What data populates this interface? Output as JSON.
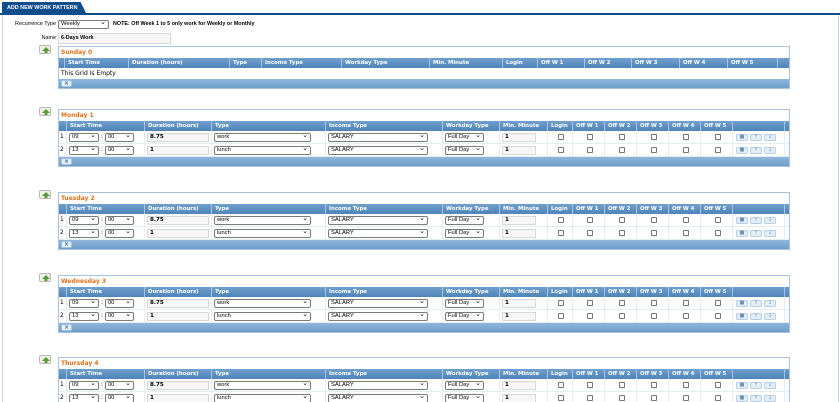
{
  "tab": {
    "label": "ADD NEW WORK PATTERN"
  },
  "form": {
    "recurrence_label": "Recurrence Type",
    "recurrence_value": "Weekly",
    "note": "NOTE: Off Week 1 to 5 only work for Weekly or Monthly",
    "name_label": "Name",
    "name_value": "6-Days Work"
  },
  "empty_grid": {
    "caption": "Sunday 0",
    "columns": [
      "Start Time",
      "Duration (hours)",
      "Type",
      "Income Type",
      "Workday Type",
      "Min. Minute",
      "Login",
      "Off W 1",
      "Off W 2",
      "Off W 3",
      "Off W 4",
      "Off W 5"
    ],
    "empty_text": "This Grid Is Empty"
  },
  "day_columns": [
    "Start Time",
    "Duration (hours)",
    "Type",
    "Income Type",
    "Workday Type",
    "Min. Minute",
    "Login",
    "Off W 1",
    "Off W 2",
    "Off W 3",
    "Off W 4",
    "Off W 5"
  ],
  "days": [
    {
      "caption": "Monday 1",
      "rows": [
        {
          "num": "1",
          "hour": "09",
          "minute": "00",
          "duration": "8.75",
          "type": "work",
          "income": "SALARY",
          "workday": "Full Day",
          "min_minute": "1"
        },
        {
          "num": "2",
          "hour": "13",
          "minute": "00",
          "duration": "1",
          "type": "lunch",
          "income": "SALARY",
          "workday": "Full Day",
          "min_minute": "1"
        }
      ]
    },
    {
      "caption": "Tuesday 2",
      "rows": [
        {
          "num": "1",
          "hour": "09",
          "minute": "00",
          "duration": "8.75",
          "type": "work",
          "income": "SALARY",
          "workday": "Full Day",
          "min_minute": "1"
        },
        {
          "num": "2",
          "hour": "13",
          "minute": "00",
          "duration": "1",
          "type": "lunch",
          "income": "SALARY",
          "workday": "Full Day",
          "min_minute": "1"
        }
      ]
    },
    {
      "caption": "Wednesday 3",
      "rows": [
        {
          "num": "1",
          "hour": "09",
          "minute": "00",
          "duration": "8.75",
          "type": "work",
          "income": "SALARY",
          "workday": "Full Day",
          "min_minute": "1"
        },
        {
          "num": "2",
          "hour": "13",
          "minute": "00",
          "duration": "1",
          "type": "lunch",
          "income": "SALARY",
          "workday": "Full Day",
          "min_minute": "1"
        }
      ]
    },
    {
      "caption": "Thursday 4",
      "rows": [
        {
          "num": "1",
          "hour": "09",
          "minute": "00",
          "duration": "8.75",
          "type": "work",
          "income": "SALARY",
          "workday": "Full Day",
          "min_minute": "1"
        },
        {
          "num": "2",
          "hour": "13",
          "minute": "00",
          "duration": "1",
          "type": "lunch",
          "income": "SALARY",
          "workday": "Full Day",
          "min_minute": "1"
        }
      ]
    }
  ],
  "time_separator": ":",
  "icons": {
    "add": "add-row-icon",
    "clear": "clear-grid-icon",
    "delete": "delete-row-icon",
    "up": "move-up-icon",
    "down": "move-down-icon"
  },
  "colors": {
    "header": "#4f84ba",
    "caption": "#e5701a",
    "tab": "#0e4d8c"
  }
}
